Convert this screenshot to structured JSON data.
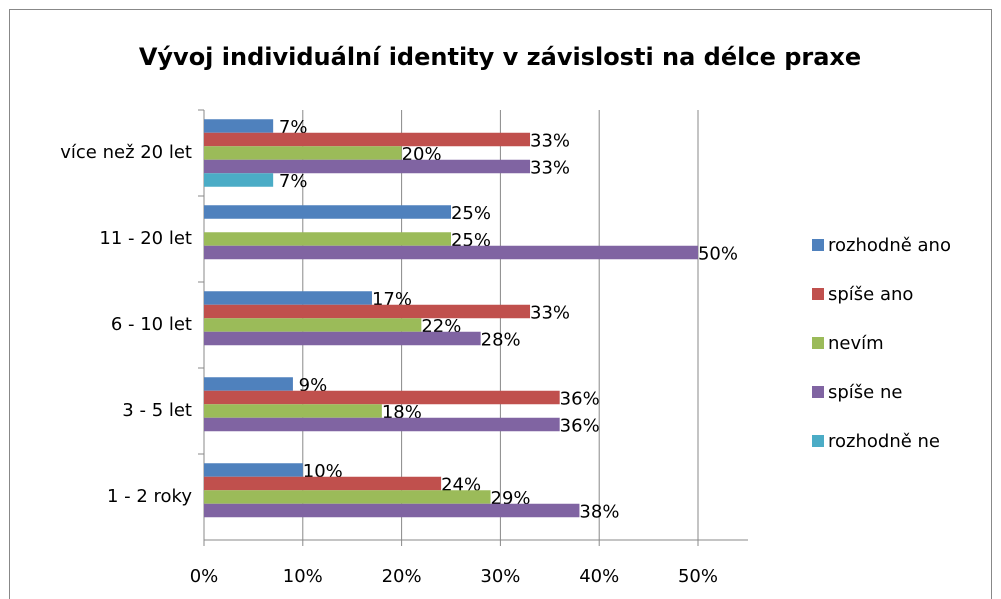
{
  "chart_data": {
    "type": "bar",
    "orientation": "horizontal",
    "title": "Vývoj individuální identity v závislosti na délce praxe",
    "categories": [
      "více než 20 let",
      "11 - 20 let",
      "6 - 10 let",
      "3 - 5 let",
      "1 - 2 roky"
    ],
    "series": [
      {
        "name": "rozhodně ano",
        "color": "#4f81bd",
        "values": [
          7,
          25,
          17,
          9,
          10
        ],
        "value_labels": [
          "7%",
          "25%",
          "17%",
          "9%",
          "10%"
        ]
      },
      {
        "name": "spíše ano",
        "color": "#c0504d",
        "values": [
          33,
          null,
          33,
          36,
          24
        ],
        "value_labels": [
          "33%",
          null,
          "33%",
          "36%",
          "24%"
        ]
      },
      {
        "name": "nevím",
        "color": "#9bbb59",
        "values": [
          20,
          25,
          22,
          18,
          29
        ],
        "value_labels": [
          "20%",
          "25%",
          "22%",
          "18%",
          "29%"
        ]
      },
      {
        "name": "spíše ne",
        "color": "#8064a2",
        "values": [
          33,
          50,
          28,
          36,
          38
        ],
        "value_labels": [
          "33%",
          "50%",
          "28%",
          "36%",
          "38%"
        ]
      },
      {
        "name": "rozhodně ne",
        "color": "#4bacc6",
        "values": [
          7,
          null,
          null,
          null,
          null
        ],
        "value_labels": [
          "7%",
          null,
          null,
          null,
          null
        ]
      }
    ],
    "xlim": [
      0,
      50
    ],
    "xticks": [
      {
        "value": 0,
        "label": "0%"
      },
      {
        "value": 10,
        "label": "10%"
      },
      {
        "value": 20,
        "label": "20%"
      },
      {
        "value": 30,
        "label": "30%"
      },
      {
        "value": 40,
        "label": "40%"
      },
      {
        "value": 50,
        "label": "50%"
      }
    ],
    "grid": true,
    "legend": "right"
  }
}
